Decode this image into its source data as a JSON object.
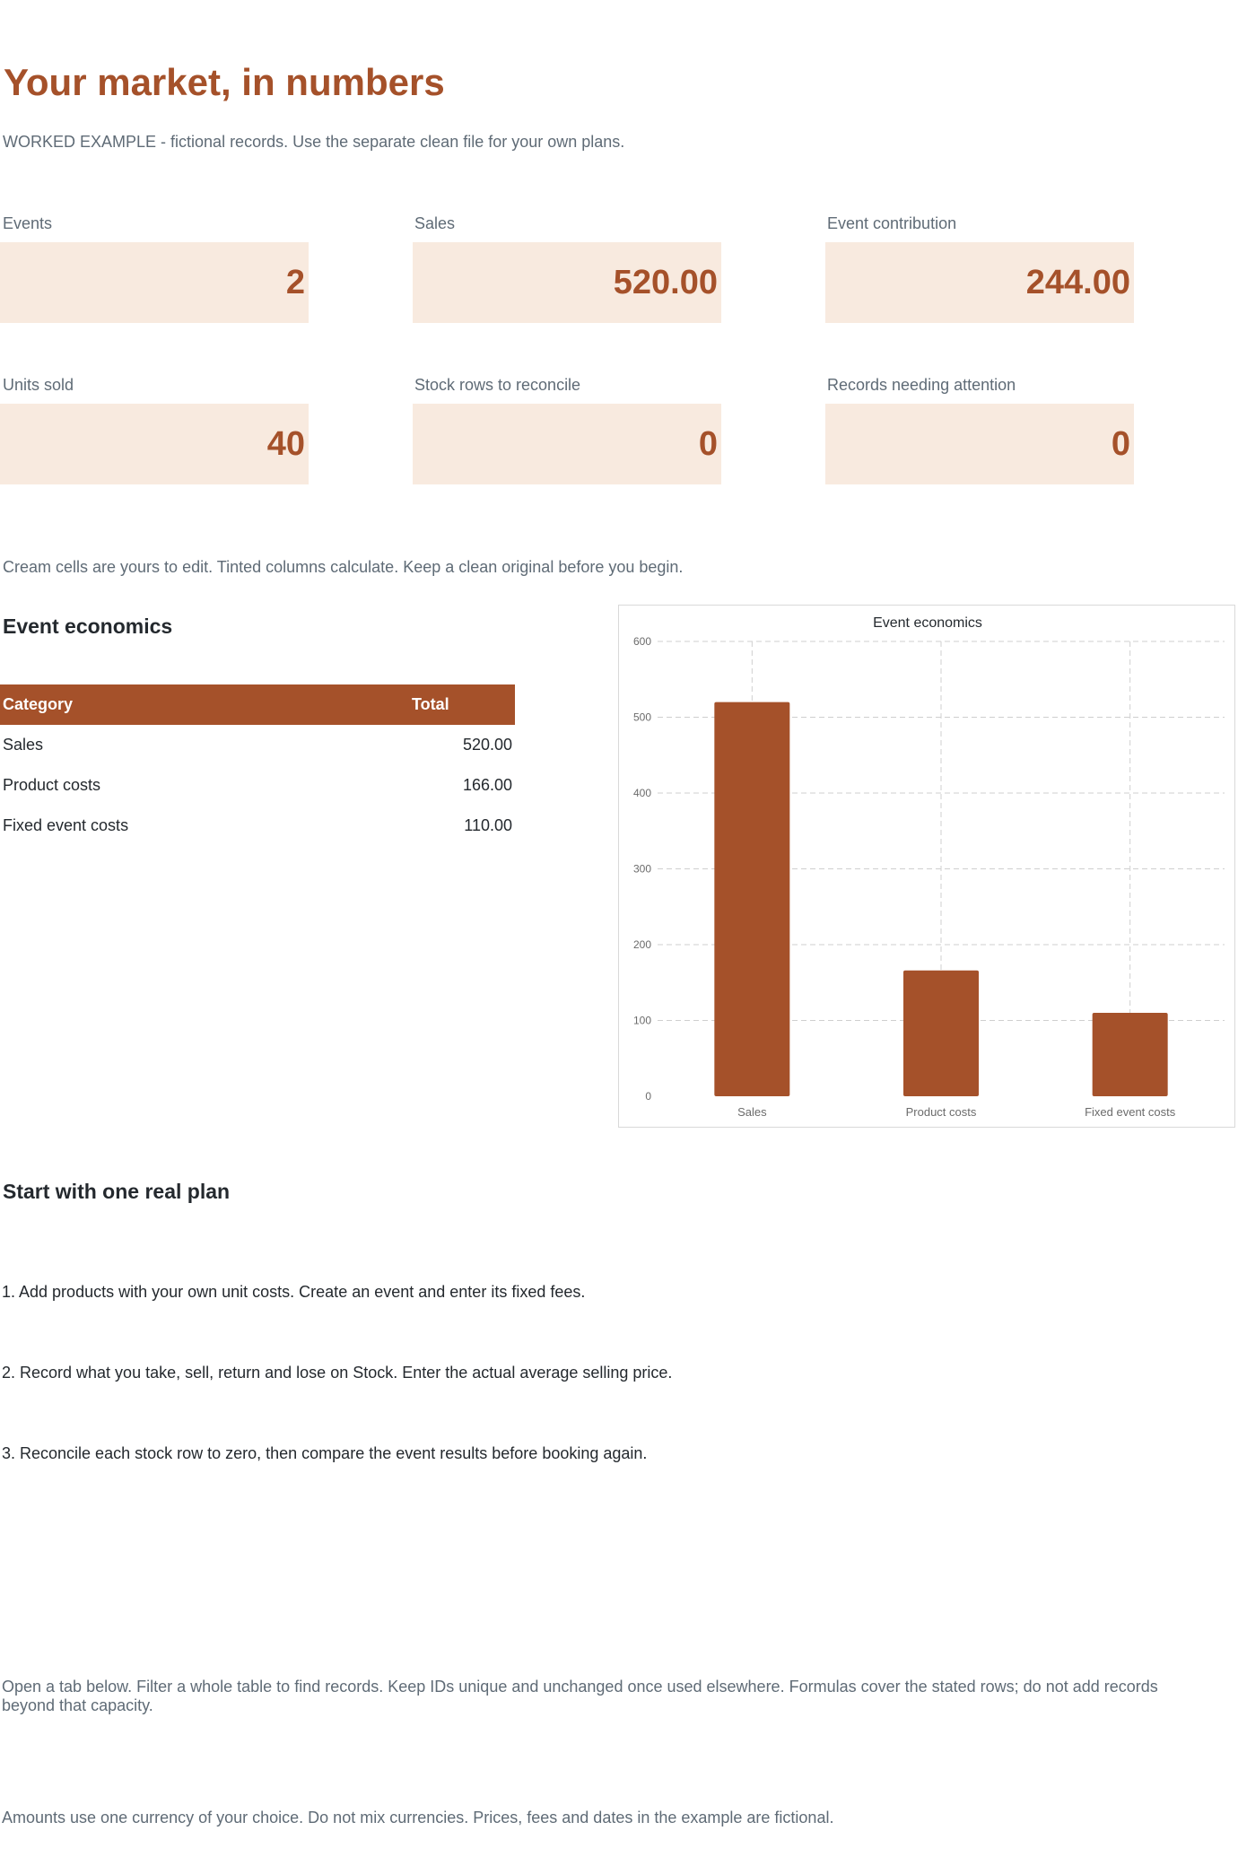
{
  "header": {
    "title": "Your market, in numbers",
    "subtitle": "WORKED EXAMPLE - fictional records. Use the separate clean file for your own plans."
  },
  "kpis": [
    {
      "label": "Events",
      "value": "2"
    },
    {
      "label": "Sales",
      "value": "520.00"
    },
    {
      "label": "Event contribution",
      "value": "244.00"
    },
    {
      "label": "Units sold",
      "value": "40"
    },
    {
      "label": "Stock rows to reconcile",
      "value": "0"
    },
    {
      "label": "Records needing attention",
      "value": "0"
    }
  ],
  "edit_note": "Cream cells are yours to edit. Tinted columns calculate. Keep a clean original before you begin.",
  "economics": {
    "heading": "Event economics",
    "columns": [
      "Category",
      "Total"
    ],
    "rows": [
      {
        "category": "Sales",
        "total": "520.00"
      },
      {
        "category": "Product costs",
        "total": "166.00"
      },
      {
        "category": "Fixed event costs",
        "total": "110.00"
      }
    ]
  },
  "chart_data": {
    "type": "bar",
    "title": "Event economics",
    "categories": [
      "Sales",
      "Product costs",
      "Fixed event costs"
    ],
    "values": [
      520,
      166,
      110
    ],
    "yticks": [
      0,
      100,
      200,
      300,
      400,
      500,
      600
    ],
    "ylim": [
      0,
      600
    ],
    "xlabel": "",
    "ylabel": "",
    "grid": true,
    "bar_color": "#a5512a"
  },
  "plan": {
    "heading": "Start with one real plan",
    "steps": [
      "1. Add products with your own unit costs. Create an event and enter its fixed fees.",
      "2. Record what you take, sell, return and lose on Stock. Enter the actual average selling price.",
      "3. Reconcile each stock row to zero, then compare the event results before booking again."
    ]
  },
  "footer_notes": [
    "Open a tab below. Filter a whole table to find records. Keep IDs unique and unchanged once used elsewhere. Formulas cover the stated rows; do not add records beyond that capacity.",
    "Amounts use one currency of your choice. Do not mix currencies. Prices, fees and dates in the example are fictional."
  ],
  "colors": {
    "accent": "#a5512a",
    "kpi_fill": "#f8eadf",
    "muted_text": "#5f6b76"
  }
}
